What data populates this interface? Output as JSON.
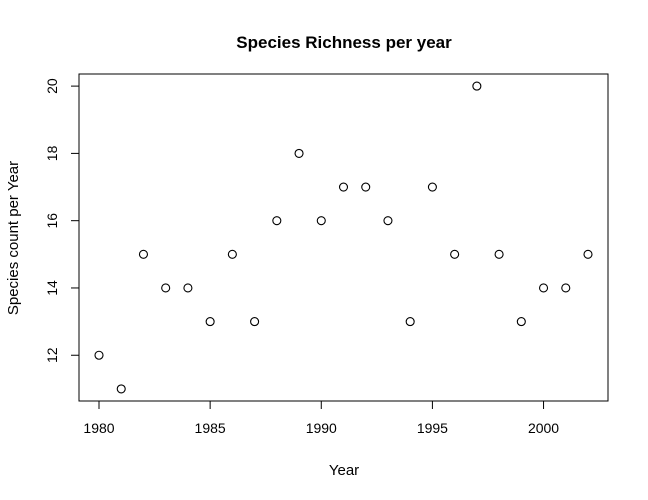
{
  "chart_data": {
    "type": "scatter",
    "title": "Species Richness per year",
    "xlabel": "Year",
    "ylabel": "Species count per Year",
    "xlim": [
      1979.1,
      2002.9
    ],
    "ylim": [
      10.64,
      20.36
    ],
    "x_ticks": [
      1980,
      1985,
      1990,
      1995,
      2000
    ],
    "y_ticks": [
      12,
      14,
      16,
      18,
      20
    ],
    "grid": false,
    "marker": "open-circle",
    "points": [
      {
        "x": 1980,
        "y": 12
      },
      {
        "x": 1981,
        "y": 11
      },
      {
        "x": 1982,
        "y": 15
      },
      {
        "x": 1983,
        "y": 14
      },
      {
        "x": 1984,
        "y": 14
      },
      {
        "x": 1985,
        "y": 13
      },
      {
        "x": 1986,
        "y": 15
      },
      {
        "x": 1987,
        "y": 13
      },
      {
        "x": 1988,
        "y": 16
      },
      {
        "x": 1989,
        "y": 18
      },
      {
        "x": 1990,
        "y": 16
      },
      {
        "x": 1991,
        "y": 17
      },
      {
        "x": 1992,
        "y": 17
      },
      {
        "x": 1993,
        "y": 16
      },
      {
        "x": 1994,
        "y": 13
      },
      {
        "x": 1995,
        "y": 17
      },
      {
        "x": 1996,
        "y": 15
      },
      {
        "x": 1997,
        "y": 20
      },
      {
        "x": 1998,
        "y": 15
      },
      {
        "x": 1999,
        "y": 13
      },
      {
        "x": 2000,
        "y": 14
      },
      {
        "x": 2001,
        "y": 14
      },
      {
        "x": 2002,
        "y": 15
      }
    ]
  }
}
